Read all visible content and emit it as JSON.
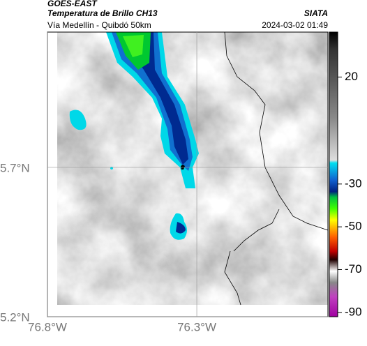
{
  "header": {
    "satellite": "GOES-EAST",
    "title": "Temperatura de Brillo CH13",
    "source": "SIATA",
    "subtitle": "Vía Medellín - Quibdó 50km",
    "datetime": "2024-03-02 01:49"
  },
  "map": {
    "xlim": [
      -76.8,
      -75.861
    ],
    "ylim": [
      5.2,
      6.153
    ],
    "xticks": [
      {
        "value": -76.8,
        "label": "76.8°W"
      },
      {
        "value": -76.3,
        "label": "76.3°W"
      }
    ],
    "yticks": [
      {
        "value": 5.7,
        "label": "5.7°N"
      },
      {
        "value": 5.2,
        "label": "5.2°N"
      }
    ]
  },
  "colorbar": {
    "lim": [
      -92,
      41
    ],
    "ticks": [
      20,
      -30,
      -50,
      -70,
      -90
    ]
  }
}
